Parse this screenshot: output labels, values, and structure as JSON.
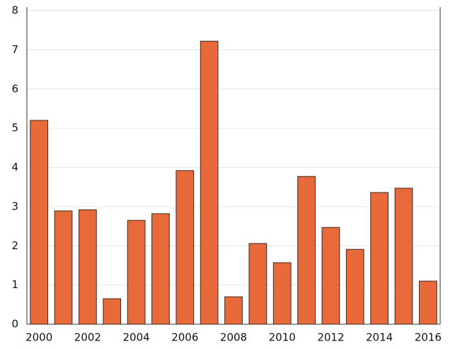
{
  "chart_data": {
    "type": "bar",
    "categories": [
      "2000",
      null,
      "2002",
      null,
      "2004",
      null,
      "2006",
      null,
      "2008",
      null,
      "2010",
      null,
      "2012",
      null,
      "2014",
      null,
      "2016"
    ],
    "values": [
      5.2,
      2.89,
      2.92,
      0.65,
      2.65,
      2.82,
      3.92,
      7.22,
      0.7,
      2.06,
      1.57,
      3.77,
      2.47,
      1.91,
      3.36,
      3.47,
      1.1
    ],
    "color": "#e8693a",
    "ylim": [
      0,
      8
    ],
    "yticks": [
      0,
      1,
      2,
      3,
      4,
      5,
      6,
      7,
      8
    ],
    "grid": true
  }
}
